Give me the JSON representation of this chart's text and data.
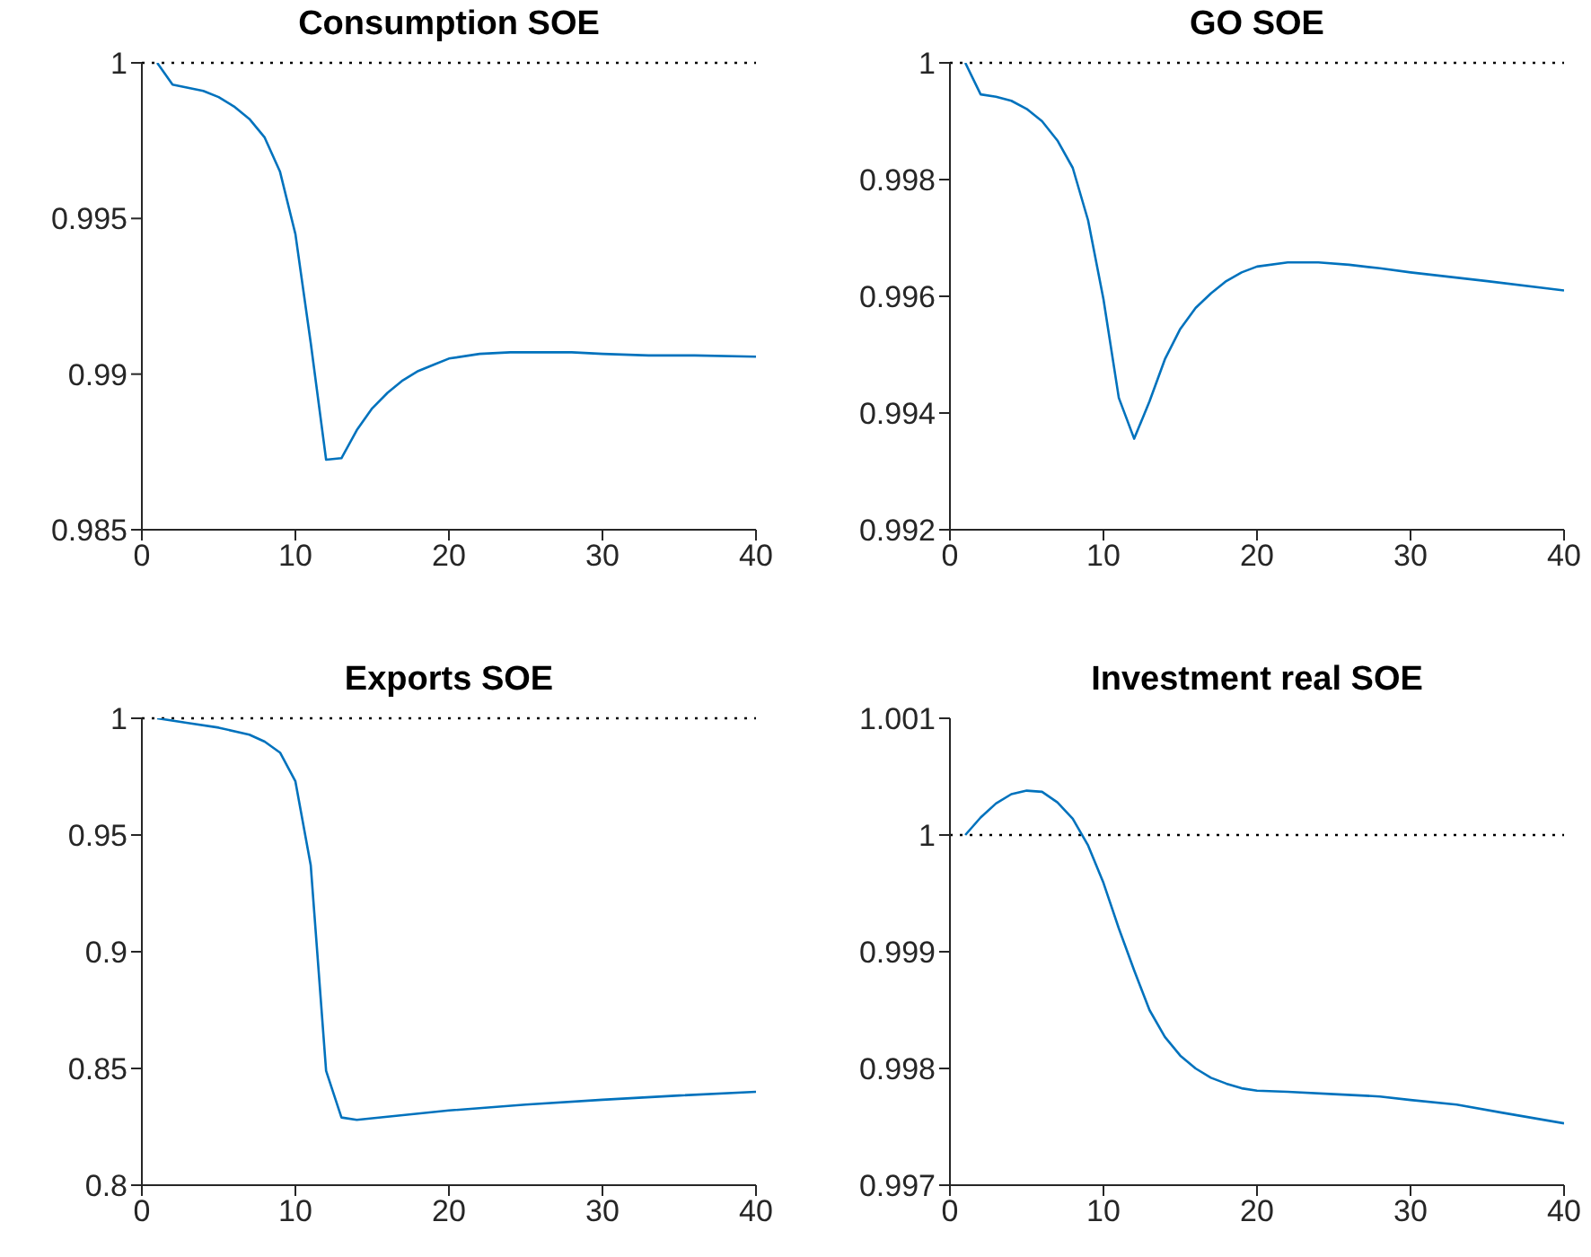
{
  "chart_data": [
    {
      "type": "line",
      "title": "Consumption SOE",
      "xlim": [
        0,
        40
      ],
      "xticks": [
        0,
        10,
        20,
        30,
        40
      ],
      "ylim": [
        0.985,
        1
      ],
      "yticks": [
        0.985,
        0.99,
        0.995,
        1
      ],
      "grid": false,
      "legend": false,
      "marker": "none",
      "line_style": "solid",
      "ref_lines": [
        {
          "axis": "y",
          "value": 1,
          "color": "#000000",
          "line_style": "dotted"
        }
      ],
      "series": [
        {
          "color": "#0072bd",
          "x": [
            1,
            2,
            3,
            4,
            5,
            6,
            7,
            8,
            9,
            10,
            11,
            12,
            13,
            14,
            15,
            16,
            17,
            18,
            19,
            20,
            22,
            24,
            26,
            28,
            30,
            33,
            36,
            40
          ],
          "values": [
            1,
            0.9993,
            0.9992,
            0.9991,
            0.9989,
            0.9986,
            0.9982,
            0.9976,
            0.9965,
            0.9945,
            0.991,
            0.98725,
            0.9873,
            0.9882,
            0.9889,
            0.9894,
            0.9898,
            0.9901,
            0.9903,
            0.9905,
            0.99065,
            0.9907,
            0.9907,
            0.9907,
            0.99065,
            0.9906,
            0.9906,
            0.99056
          ]
        }
      ]
    },
    {
      "type": "line",
      "title": "GO SOE",
      "xlim": [
        0,
        40
      ],
      "xticks": [
        0,
        10,
        20,
        30,
        40
      ],
      "ylim": [
        0.992,
        1
      ],
      "yticks": [
        0.992,
        0.994,
        0.996,
        0.998,
        1
      ],
      "grid": false,
      "legend": false,
      "marker": "none",
      "line_style": "solid",
      "ref_lines": [
        {
          "axis": "y",
          "value": 1,
          "color": "#000000",
          "line_style": "dotted"
        }
      ],
      "series": [
        {
          "color": "#0072bd",
          "x": [
            1,
            2,
            3,
            4,
            5,
            6,
            7,
            8,
            9,
            10,
            11,
            12,
            13,
            14,
            15,
            16,
            17,
            18,
            19,
            20,
            22,
            24,
            26,
            28,
            30,
            35,
            40
          ],
          "values": [
            1,
            0.99946,
            0.99942,
            0.99935,
            0.99921,
            0.999,
            0.99867,
            0.9982,
            0.9973,
            0.99595,
            0.99426,
            0.99356,
            0.9942,
            0.99492,
            0.99544,
            0.9958,
            0.99605,
            0.99626,
            0.99641,
            0.99651,
            0.99658,
            0.99658,
            0.99654,
            0.99648,
            0.99641,
            0.99626,
            0.9961
          ]
        }
      ]
    },
    {
      "type": "line",
      "title": "Exports SOE",
      "xlim": [
        0,
        40
      ],
      "xticks": [
        0,
        10,
        20,
        30,
        40
      ],
      "ylim": [
        0.8,
        1
      ],
      "yticks": [
        0.8,
        0.85,
        0.9,
        0.95,
        1
      ],
      "grid": false,
      "legend": false,
      "marker": "none",
      "line_style": "solid",
      "ref_lines": [
        {
          "axis": "y",
          "value": 1,
          "color": "#000000",
          "line_style": "dotted"
        }
      ],
      "series": [
        {
          "color": "#0072bd",
          "x": [
            1,
            3,
            5,
            7,
            8,
            9,
            10,
            11,
            12,
            13,
            14,
            20,
            25,
            30,
            35,
            40
          ],
          "values": [
            1,
            0.998,
            0.996,
            0.993,
            0.99,
            0.9853,
            0.973,
            0.937,
            0.849,
            0.829,
            0.828,
            0.832,
            0.8345,
            0.8366,
            0.8384,
            0.84
          ]
        }
      ]
    },
    {
      "type": "line",
      "title": "Investment real SOE",
      "xlim": [
        0,
        40
      ],
      "xticks": [
        0,
        10,
        20,
        30,
        40
      ],
      "ylim": [
        0.997,
        1.001
      ],
      "yticks": [
        0.997,
        0.998,
        0.999,
        1,
        1.001
      ],
      "grid": false,
      "legend": false,
      "marker": "none",
      "line_style": "solid",
      "ref_lines": [
        {
          "axis": "y",
          "value": 1,
          "color": "#000000",
          "line_style": "dotted"
        }
      ],
      "series": [
        {
          "color": "#0072bd",
          "x": [
            1,
            2,
            3,
            4,
            5,
            6,
            7,
            8,
            9,
            10,
            11,
            12,
            13,
            14,
            15,
            16,
            17,
            18,
            19,
            20,
            22,
            25,
            28,
            30,
            33,
            36,
            40
          ],
          "values": [
            1,
            1.00015,
            1.00027,
            1.00035,
            1.00038,
            1.00037,
            1.00028,
            1.00014,
            0.99991,
            0.99959,
            0.9992,
            0.99884,
            0.9985,
            0.99827,
            0.99811,
            0.998,
            0.99792,
            0.99787,
            0.99783,
            0.99781,
            0.9978,
            0.99778,
            0.99776,
            0.99773,
            0.99769,
            0.99762,
            0.99753
          ]
        }
      ]
    }
  ]
}
